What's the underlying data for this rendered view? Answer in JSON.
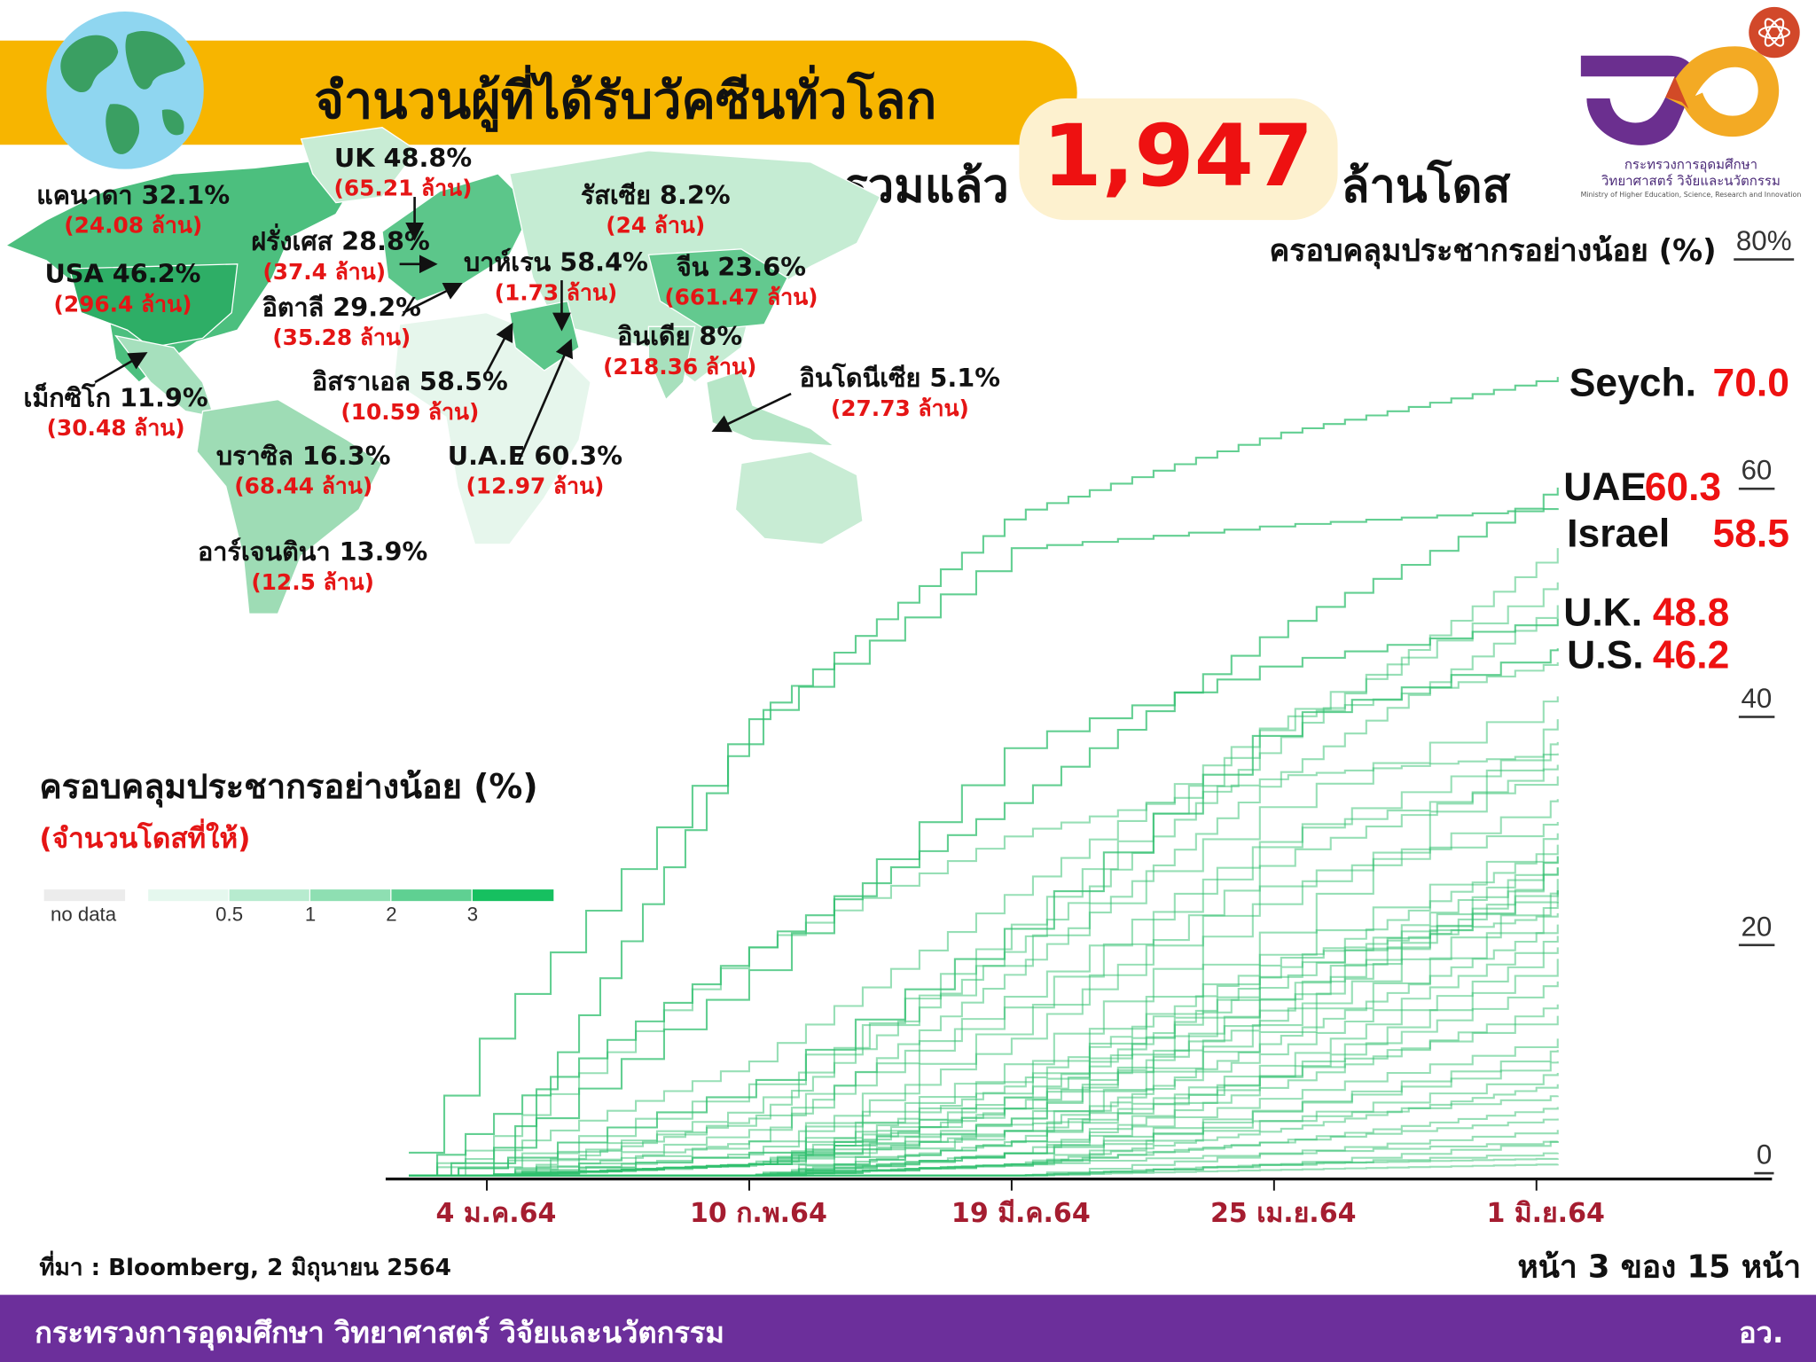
{
  "header": {
    "title": "จำนวนผู้ที่ได้รับวัคซีนทั่วโลก",
    "total_prefix": "รวมแล้ว",
    "total_value": "1,947",
    "total_unit": "ล้านโดส"
  },
  "logo": {
    "line1": "กระทรวงการอุดมศึกษา",
    "line2": "วิทยาศาสตร์ วิจัยและนวัตกรรม",
    "line3": "Ministry of Higher Education, Science, Research and Innovation"
  },
  "map": {
    "countries": [
      {
        "label": "UK 48.8%",
        "doses": "(65.21 ล้าน)"
      },
      {
        "label": "แคนาดา 32.1%",
        "doses": "(24.08 ล้าน)"
      },
      {
        "label": "รัสเซีย 8.2%",
        "doses": "(24 ล้าน)"
      },
      {
        "label": "ฝรั่งเศส 28.8%",
        "doses": "(37.4 ล้าน)"
      },
      {
        "label": "USA 46.2%",
        "doses": "(296.4 ล้าน)"
      },
      {
        "label": "บาห์เรน 58.4%",
        "doses": "(1.73 ล้าน)"
      },
      {
        "label": "จีน 23.6%",
        "doses": "(661.47 ล้าน)"
      },
      {
        "label": "อิตาลี 29.2%",
        "doses": "(35.28 ล้าน)"
      },
      {
        "label": "อินเดีย 8%",
        "doses": "(218.36 ล้าน)"
      },
      {
        "label": "อิสราเอล 58.5%",
        "doses": "(10.59 ล้าน)"
      },
      {
        "label": "อินโดนีเซีย 5.1%",
        "doses": "(27.73 ล้าน)"
      },
      {
        "label": "เม็กซิโก 11.9%",
        "doses": "(30.48 ล้าน)"
      },
      {
        "label": "บราซิล 16.3%",
        "doses": "(68.44 ล้าน)"
      },
      {
        "label": "U.A.E 60.3%",
        "doses": "(12.97 ล้าน)"
      },
      {
        "label": "อาร์เจนตินา 13.9%",
        "doses": "(12.5 ล้าน)"
      }
    ],
    "legend": {
      "title": "ครอบคลุมประชากรอย่างน้อย (%)",
      "subtitle": "(จำนวนโดสที่ให้)",
      "no_data_label": "no data",
      "no_data_color": "#ececec",
      "ticks": [
        "0.5",
        "1",
        "2",
        "3"
      ],
      "colors": [
        "#e5f8ee",
        "#b7ebcf",
        "#8edfb2",
        "#5fd092",
        "#16c060"
      ]
    }
  },
  "chart_data": {
    "type": "line",
    "title": "ครอบคลุมประชากรอย่างน้อย (%)",
    "y_top_label": "80%",
    "ylim": [
      0,
      80
    ],
    "yticks": [
      "0",
      "20",
      "40",
      "60"
    ],
    "xlim": [
      "2020-12-24",
      "2021-06-04"
    ],
    "xticks": [
      {
        "date": "2021-01-04",
        "label": "4 ม.ค.64"
      },
      {
        "date": "2021-02-10",
        "label": "10 ก.พ.64"
      },
      {
        "date": "2021-03-19",
        "label": "19 มี.ค.64"
      },
      {
        "date": "2021-04-25",
        "label": "25 เม.ย.64"
      },
      {
        "date": "2021-06-01",
        "label": "1 มิ.ย.64"
      }
    ],
    "line_color": "#2fbf6e",
    "sample_dates": [
      "2020-12-24",
      "2021-01-04",
      "2021-02-10",
      "2021-03-19",
      "2021-04-25",
      "2021-06-04"
    ],
    "labeled": [
      {
        "name": "Seych.",
        "value": "70.0"
      },
      {
        "name": "UAE",
        "value": "60.3"
      },
      {
        "name": "Israel",
        "value": "58.5"
      },
      {
        "name": "U.K.",
        "value": "48.8"
      },
      {
        "name": "U.S.",
        "value": "46.2"
      }
    ],
    "series": [
      {
        "name": "Seych.",
        "values": [
          0,
          0,
          40,
          58,
          65,
          70
        ]
      },
      {
        "name": "UAE",
        "values": [
          0,
          5,
          20,
          33,
          48,
          60.3
        ]
      },
      {
        "name": "Israel",
        "values": [
          2,
          13,
          40,
          55,
          57,
          58.5
        ]
      },
      {
        "name": "U.K.",
        "values": [
          0,
          2,
          18,
          38,
          45,
          48.8
        ]
      },
      {
        "name": "U.S.",
        "values": [
          0,
          1,
          8,
          22,
          40,
          46.2
        ]
      },
      {
        "values": [
          0,
          0,
          2,
          8,
          20,
          30
        ]
      },
      {
        "values": [
          0,
          0,
          1,
          6,
          18,
          29
        ]
      },
      {
        "values": [
          0,
          0,
          1,
          7,
          17,
          28
        ]
      },
      {
        "values": [
          0,
          0,
          1,
          5,
          15,
          27
        ]
      },
      {
        "values": [
          0,
          0,
          1,
          6,
          16,
          26
        ]
      },
      {
        "values": [
          0,
          0,
          0,
          4,
          14,
          25
        ]
      },
      {
        "values": [
          0,
          0,
          1,
          5,
          13,
          24
        ]
      },
      {
        "values": [
          0,
          0,
          0,
          3,
          12,
          22
        ]
      },
      {
        "values": [
          0,
          0,
          1,
          4,
          11,
          21
        ]
      },
      {
        "values": [
          0,
          0,
          0,
          3,
          10,
          20
        ]
      },
      {
        "values": [
          0,
          0,
          0,
          2,
          9,
          19
        ]
      },
      {
        "values": [
          0,
          1,
          5,
          15,
          30,
          38
        ]
      },
      {
        "values": [
          0,
          1,
          8,
          20,
          33,
          42
        ]
      },
      {
        "values": [
          0,
          0,
          3,
          18,
          35,
          50
        ]
      },
      {
        "values": [
          0,
          2,
          10,
          25,
          40,
          45
        ]
      },
      {
        "values": [
          0,
          0,
          2,
          12,
          28,
          36
        ]
      },
      {
        "values": [
          0,
          0,
          4,
          16,
          30,
          35
        ]
      },
      {
        "values": [
          0,
          0,
          1,
          10,
          25,
          33
        ]
      },
      {
        "values": [
          0,
          0,
          3,
          9,
          22,
          40
        ]
      },
      {
        "values": [
          0,
          0,
          5,
          20,
          38,
          55
        ]
      },
      {
        "values": [
          0,
          3,
          20,
          30,
          35,
          37
        ]
      },
      {
        "values": [
          0,
          0,
          6,
          22,
          40,
          52
        ]
      },
      {
        "values": [
          0,
          0,
          0,
          2,
          7,
          12
        ]
      },
      {
        "values": [
          0,
          0,
          0,
          2,
          6,
          10
        ]
      },
      {
        "values": [
          0,
          0,
          0,
          1,
          5,
          9
        ]
      },
      {
        "values": [
          0,
          0,
          0,
          1,
          4,
          8
        ]
      },
      {
        "values": [
          0,
          0,
          0,
          1,
          3,
          6
        ]
      },
      {
        "values": [
          0,
          0,
          0,
          1,
          3,
          5
        ]
      },
      {
        "values": [
          0,
          0,
          0,
          0,
          2,
          4
        ]
      },
      {
        "values": [
          0,
          0,
          0,
          0,
          1,
          3
        ]
      },
      {
        "values": [
          0,
          0,
          0,
          0,
          1,
          2
        ]
      },
      {
        "values": [
          0,
          0,
          0,
          0,
          0.5,
          1
        ]
      },
      {
        "values": [
          0,
          0,
          0,
          2,
          8,
          15
        ]
      },
      {
        "values": [
          0,
          0,
          0,
          3,
          9,
          17
        ]
      },
      {
        "values": [
          0,
          0,
          1,
          4,
          9,
          14
        ]
      },
      {
        "values": [
          0,
          0,
          0,
          1,
          6,
          11
        ]
      },
      {
        "values": [
          0,
          0,
          2,
          14,
          26,
          31
        ]
      },
      {
        "values": [
          0,
          0,
          1,
          8,
          19,
          23
        ]
      },
      {
        "values": [
          0,
          0,
          1,
          6,
          14,
          27
        ]
      },
      {
        "values": [
          0,
          0,
          0,
          5,
          16,
          28
        ]
      },
      {
        "values": [
          0,
          0,
          1,
          7,
          18,
          25
        ]
      },
      {
        "values": [
          0,
          0,
          0,
          2,
          5,
          7
        ]
      },
      {
        "values": [
          0,
          0,
          0,
          1,
          2,
          3
        ]
      },
      {
        "values": [
          0,
          0,
          0,
          0,
          1,
          1.5
        ]
      }
    ]
  },
  "footer": {
    "source": "ที่มา : Bloomberg, 2 มิถุนายน 2564",
    "page": "หน้า 3 ของ 15 หน้า",
    "ministry": "กระทรวงการอุดมศึกษา วิทยาศาสตร์ วิจัยและนวัตกรรม",
    "abbr": "อว."
  }
}
